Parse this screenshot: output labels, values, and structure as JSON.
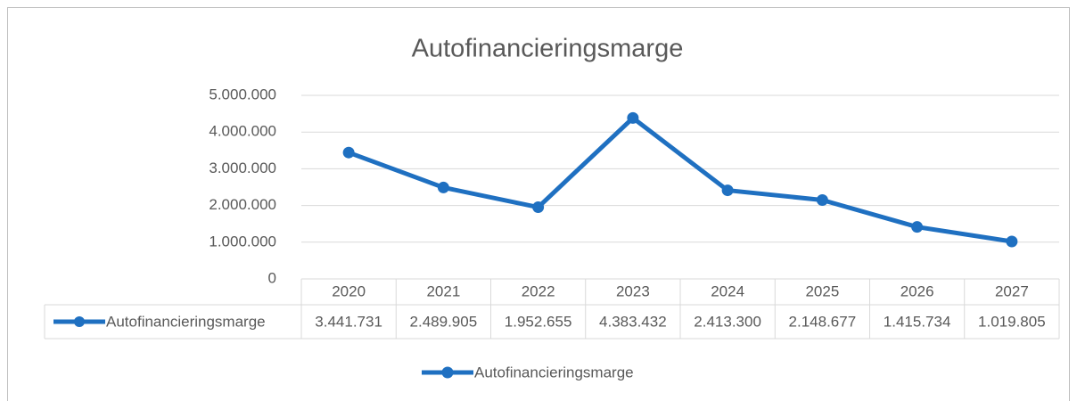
{
  "chart_data": {
    "type": "line",
    "title": "Autofinancieringsmarge",
    "categories": [
      "2020",
      "2021",
      "2022",
      "2023",
      "2024",
      "2025",
      "2026",
      "2027"
    ],
    "series": [
      {
        "name": "Autofinancieringsmarge",
        "color": "#1f70c1",
        "values": [
          3441731,
          2489905,
          1952655,
          4383432,
          2413300,
          2148677,
          1415734,
          1019805
        ],
        "value_labels": [
          "3.441.731",
          "2.489.905",
          "1.952.655",
          "4.383.432",
          "2.413.300",
          "2.148.677",
          "1.415.734",
          "1.019.805"
        ]
      }
    ],
    "ylim": [
      0,
      5000000
    ],
    "yticks": [
      0,
      {
        "value": 1000000,
        "label": "1.000.000"
      },
      {
        "value": 2000000,
        "label": "2.000.000"
      },
      {
        "value": 3000000,
        "label": "3.000.000"
      },
      {
        "value": 4000000,
        "label": "4.000.000"
      },
      {
        "value": 5000000,
        "label": "5.000.000"
      }
    ],
    "grid": true,
    "legend": "bottom",
    "data_table": true
  }
}
